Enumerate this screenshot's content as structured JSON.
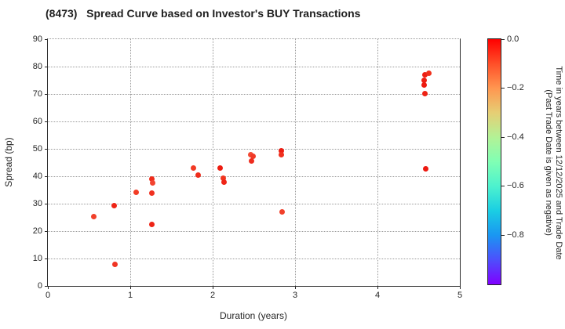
{
  "window": {
    "title": "(8473)   Spread Curve based on Investor's BUY Transactions"
  },
  "chart_data": {
    "type": "scatter",
    "title": "(8473)   Spread Curve based on Investor's BUY Transactions",
    "xlabel": "Duration (years)",
    "ylabel": "Spread (bp)",
    "xlim": [
      0,
      5
    ],
    "ylim": [
      0,
      90
    ],
    "xticks": [
      0,
      1,
      2,
      3,
      4,
      5
    ],
    "yticks": [
      0,
      10,
      20,
      30,
      40,
      50,
      60,
      70,
      80,
      90
    ],
    "grid": true,
    "grid_style": "dotted",
    "legend_position": "none",
    "points": [
      {
        "x": 0.56,
        "y": 25.4,
        "color": "#f1402a"
      },
      {
        "x": 0.8,
        "y": 29.2,
        "color": "#ee2416"
      },
      {
        "x": 0.81,
        "y": 7.9,
        "color": "#f03524"
      },
      {
        "x": 1.07,
        "y": 34.1,
        "color": "#f23d26"
      },
      {
        "x": 1.26,
        "y": 39.0,
        "color": "#ef2b1a"
      },
      {
        "x": 1.27,
        "y": 37.7,
        "color": "#f24430"
      },
      {
        "x": 1.26,
        "y": 33.8,
        "color": "#f03120"
      },
      {
        "x": 1.26,
        "y": 22.4,
        "color": "#ee2416"
      },
      {
        "x": 1.77,
        "y": 42.9,
        "color": "#f23a24"
      },
      {
        "x": 1.82,
        "y": 40.5,
        "color": "#ef2d1c"
      },
      {
        "x": 2.09,
        "y": 42.9,
        "color": "#ed1c10"
      },
      {
        "x": 2.13,
        "y": 39.3,
        "color": "#f1351f"
      },
      {
        "x": 2.14,
        "y": 37.9,
        "color": "#ef2517"
      },
      {
        "x": 2.46,
        "y": 48.0,
        "color": "#f24933"
      },
      {
        "x": 2.49,
        "y": 47.4,
        "color": "#f03a28"
      },
      {
        "x": 2.47,
        "y": 45.6,
        "color": "#ee2c1e"
      },
      {
        "x": 2.83,
        "y": 49.4,
        "color": "#ed1d12"
      },
      {
        "x": 2.83,
        "y": 48.0,
        "color": "#f0301e"
      },
      {
        "x": 2.84,
        "y": 26.9,
        "color": "#f1402a"
      },
      {
        "x": 4.58,
        "y": 77.1,
        "color": "#ee2014"
      },
      {
        "x": 4.62,
        "y": 77.7,
        "color": "#f0311c"
      },
      {
        "x": 4.57,
        "y": 75.1,
        "color": "#ee2014"
      },
      {
        "x": 4.57,
        "y": 73.4,
        "color": "#ed1b10"
      },
      {
        "x": 4.58,
        "y": 70.2,
        "color": "#ee2315"
      },
      {
        "x": 4.59,
        "y": 42.6,
        "color": "#ed1910"
      }
    ],
    "colorbar": {
      "label_line1": "Time in years between 12/12/2025 and Trade Date",
      "label_line2": "(Past Trade Date is given as negative)",
      "vmax": 0.0,
      "vmin": -1.0,
      "ticks": [
        {
          "value": 0.0,
          "label": "0.0"
        },
        {
          "value": -0.2,
          "label": "−0.2"
        },
        {
          "value": -0.4,
          "label": "−0.4"
        },
        {
          "value": -0.6,
          "label": "−0.6"
        },
        {
          "value": -0.8,
          "label": "−0.8"
        }
      ],
      "gradient": [
        {
          "offset": 0,
          "color": "#ff0000"
        },
        {
          "offset": 10,
          "color": "#ff4f28"
        },
        {
          "offset": 20,
          "color": "#ff9650"
        },
        {
          "offset": 30,
          "color": "#e6ce74"
        },
        {
          "offset": 40,
          "color": "#b3f296"
        },
        {
          "offset": 50,
          "color": "#80ffb4"
        },
        {
          "offset": 60,
          "color": "#4df2ce"
        },
        {
          "offset": 70,
          "color": "#1acee3"
        },
        {
          "offset": 80,
          "color": "#1a96f2"
        },
        {
          "offset": 90,
          "color": "#4d4ffc"
        },
        {
          "offset": 100,
          "color": "#8000ff"
        }
      ]
    }
  }
}
